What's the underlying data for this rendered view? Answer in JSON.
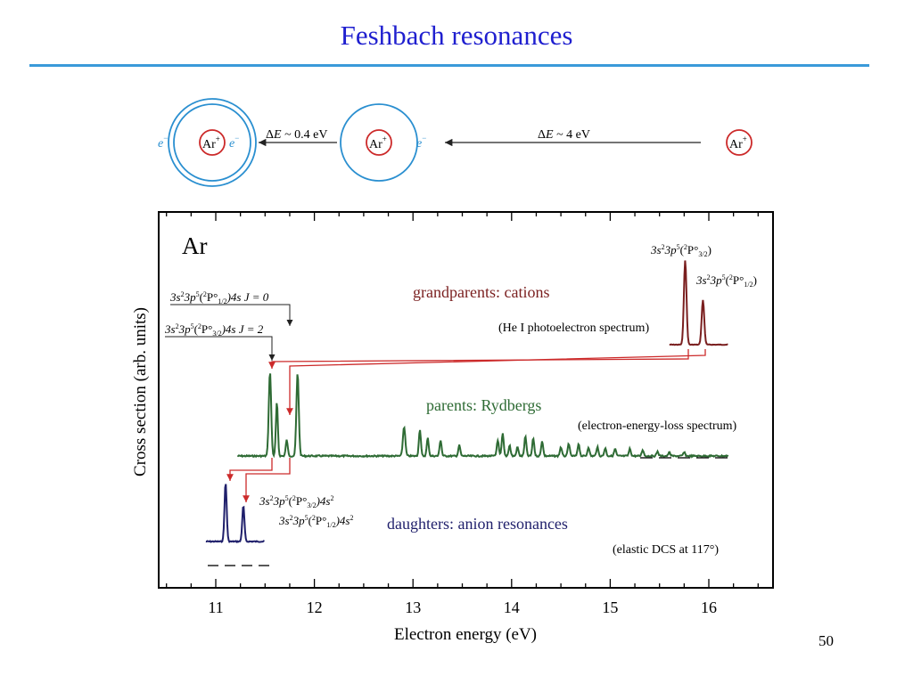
{
  "slide": {
    "title": "Feshbach resonances",
    "page_number": "50"
  },
  "schematic": {
    "ion_label": "Ar",
    "ion_charge": "+",
    "electron_label": "e",
    "electron_charge": "−",
    "delta_symbol": "Δ",
    "energy_symbol": "E",
    "step1_value": " ~ 0.4 eV",
    "step2_value": " ~ 4 eV",
    "ring_color": "#2a8fd0",
    "ion_color": "#cc2a2a"
  },
  "chart_data": {
    "type": "line",
    "panel_label": "Ar",
    "xlabel": "Electron energy (eV)",
    "ylabel": "Cross section (arb. units)",
    "xlim": [
      10.5,
      16.6
    ],
    "xticks": [
      "11",
      "12",
      "13",
      "14",
      "15",
      "16"
    ],
    "colors": {
      "cations": "#7a1f1f",
      "rydbergs": "#2e6b34",
      "anions": "#1f1f6b",
      "arrows": "#cc2a2a"
    },
    "series": [
      {
        "name": "grandparents: cations",
        "note": "(He I photoelectron spectrum)",
        "peaks": [
          {
            "x": 15.76,
            "label": {
              "pre": "3s",
              "s1": "2",
              "mid": "3p",
              "s2": "5",
              "open": "(",
              "s3": "2",
              "core": "P°",
              "sub": "3/2",
              "close": ")"
            }
          },
          {
            "x": 15.94,
            "label": {
              "pre": "3s",
              "s1": "2",
              "mid": "3p",
              "s2": "5",
              "open": "(",
              "s3": "2",
              "core": "P°",
              "sub": "1/2",
              "close": ")"
            }
          }
        ]
      },
      {
        "name": "parents: Rydbergs",
        "note": "(electron-energy-loss spectrum)",
        "peaks": [
          {
            "x": 11.55,
            "label": {
              "pre": "3s",
              "s1": "2",
              "mid": "3p",
              "s2": "5",
              "open": "(",
              "s3": "2",
              "core": "P°",
              "sub": "3/2",
              "close": ")4s",
              "tail": "  J = 2"
            }
          },
          {
            "x": 11.72,
            "label": {
              "pre": "3s",
              "s1": "2",
              "mid": "3p",
              "s2": "5",
              "open": "(",
              "s3": "2",
              "core": "P°",
              "sub": "1/2",
              "close": ")4s",
              "tail": "  J = 0"
            }
          }
        ]
      },
      {
        "name": "daughters: anion resonances",
        "note": "(elastic DCS at 117°)",
        "peaks": [
          {
            "x": 11.1,
            "label": {
              "pre": "3s",
              "s1": "2",
              "mid": "3p",
              "s2": "5",
              "open": "(",
              "s3": "2",
              "core": "P°",
              "sub": "3/2",
              "close": ")4s",
              "s4": "2"
            }
          },
          {
            "x": 11.28,
            "label": {
              "pre": "3s",
              "s1": "2",
              "mid": "3p",
              "s2": "5",
              "open": "(",
              "s3": "2",
              "core": "P°",
              "sub": "1/2",
              "close": ")4s",
              "s4": "2"
            }
          }
        ]
      }
    ]
  }
}
